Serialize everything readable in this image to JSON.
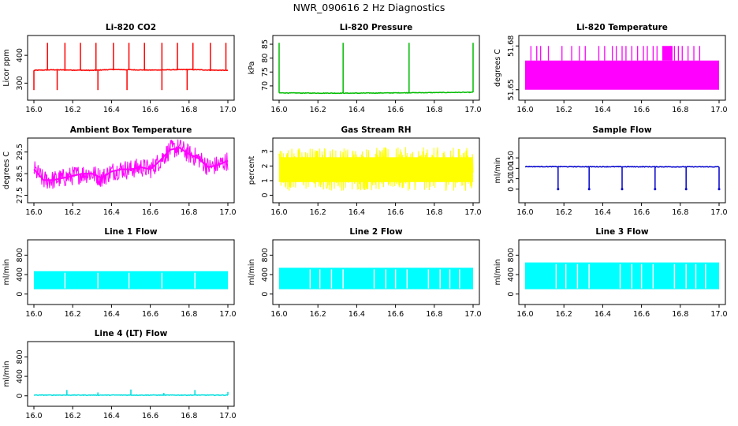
{
  "figure_title": "NWR_090616  2 Hz Diagnostics",
  "chart_data": [
    {
      "id": "co2",
      "type": "line",
      "title": "Li-820 CO2",
      "ylabel": "Licor ppm",
      "color": "#ff0000",
      "xlim": [
        16.0,
        17.0
      ],
      "ylim": [
        250,
        460
      ],
      "yticks": [
        "300",
        "400"
      ],
      "ytick_values": [
        300,
        400
      ],
      "xticks": [
        "16.0",
        "16.2",
        "16.4",
        "16.6",
        "16.8",
        "17.0"
      ],
      "x": [
        16.0,
        16.1,
        16.2,
        16.3,
        16.4,
        16.5,
        16.6,
        16.7,
        16.8,
        16.9,
        17.0
      ],
      "values": [
        346,
        348,
        347,
        346,
        349,
        348,
        347,
        348,
        349,
        347,
        346
      ],
      "spikes_up_x": [
        16.07,
        16.16,
        16.24,
        16.32,
        16.41,
        16.49,
        16.57,
        16.66,
        16.74,
        16.82,
        16.91,
        16.99
      ],
      "spikes_up_to": 445,
      "spikes_down_x": [
        16.0,
        16.12,
        16.33,
        16.48,
        16.66,
        16.79
      ],
      "spikes_down_to": 275
    },
    {
      "id": "pressure",
      "type": "line",
      "title": "Li-820 Pressure",
      "ylabel": "kPa",
      "color": "#00bb00",
      "xlim": [
        16.0,
        17.0
      ],
      "ylim": [
        66,
        87
      ],
      "yticks": [
        "70",
        "75",
        "80",
        "85"
      ],
      "ytick_values": [
        70,
        75,
        80,
        85
      ],
      "xticks": [
        "16.0",
        "16.2",
        "16.4",
        "16.6",
        "16.8",
        "17.0"
      ],
      "x": [
        16.0,
        16.2,
        16.4,
        16.6,
        16.8,
        17.0
      ],
      "values": [
        67.5,
        67.4,
        67.4,
        67.5,
        67.6,
        67.7
      ],
      "spikes_up_x": [
        16.0,
        16.33,
        16.67,
        17.0
      ],
      "spikes_up_to": 85.5
    },
    {
      "id": "temperature",
      "type": "area",
      "title": "Li-820 Temperature",
      "ylabel": "degrees C",
      "color": "#ff00ff",
      "xlim": [
        16.0,
        17.0
      ],
      "ylim": [
        51.645,
        51.685
      ],
      "yticks": [
        "51.65",
        "51.68"
      ],
      "ytick_values": [
        51.65,
        51.68
      ],
      "xticks": [
        "16.0",
        "16.2",
        "16.4",
        "16.6",
        "16.8",
        "17.0"
      ],
      "band": [
        51.65,
        51.67
      ],
      "spike_top": 51.68,
      "spikes_up_x": [
        16.03,
        16.06,
        16.08,
        16.12,
        16.19,
        16.24,
        16.28,
        16.31,
        16.38,
        16.41,
        16.45,
        16.47,
        16.5,
        16.52,
        16.55,
        16.58,
        16.61,
        16.63,
        16.66,
        16.68,
        16.71,
        16.75,
        16.77,
        16.79,
        16.81,
        16.84,
        16.87,
        16.9
      ],
      "solid_range": [
        16.71,
        16.76
      ]
    },
    {
      "id": "ambient",
      "type": "line",
      "title": "Ambient Box Temperature",
      "ylabel": "degrees C",
      "color": "#ff00ff",
      "xlim": [
        16.0,
        17.0
      ],
      "ylim": [
        27.3,
        30.0
      ],
      "yticks": [
        "27.5",
        "28.5",
        "29.5"
      ],
      "ytick_values": [
        27.5,
        28.5,
        29.5
      ],
      "xticks": [
        "16.0",
        "16.2",
        "16.4",
        "16.6",
        "16.8",
        "17.0"
      ],
      "x": [
        16.0,
        16.05,
        16.1,
        16.15,
        16.2,
        16.25,
        16.3,
        16.35,
        16.4,
        16.45,
        16.5,
        16.55,
        16.6,
        16.65,
        16.7,
        16.75,
        16.8,
        16.85,
        16.9,
        16.95,
        17.0
      ],
      "values": [
        28.7,
        28.2,
        28.2,
        28.3,
        28.4,
        28.5,
        28.5,
        28.3,
        28.6,
        28.7,
        28.7,
        28.8,
        28.7,
        29.1,
        29.6,
        29.7,
        29.4,
        29.2,
        28.8,
        28.9,
        29.1
      ],
      "amplitude": 0.45
    },
    {
      "id": "rh",
      "type": "area",
      "title": "Gas Stream RH",
      "ylabel": "percent",
      "color": "#ffff00",
      "xlim": [
        16.0,
        17.0
      ],
      "ylim": [
        -0.3,
        3.7
      ],
      "yticks": [
        "0",
        "1",
        "2",
        "3"
      ],
      "ytick_values": [
        0,
        1,
        2,
        3
      ],
      "xticks": [
        "16.0",
        "16.2",
        "16.4",
        "16.6",
        "16.8",
        "17.0"
      ],
      "band": [
        0.3,
        3.3
      ]
    },
    {
      "id": "sample",
      "type": "line",
      "title": "Sample Flow",
      "ylabel": "ml/min",
      "color": "#0000cc",
      "xlim": [
        16.0,
        17.0
      ],
      "ylim": [
        -50,
        230
      ],
      "yticks": [
        "0",
        "50",
        "100",
        "150"
      ],
      "ytick_values": [
        0,
        50,
        100,
        150
      ],
      "xticks": [
        "16.0",
        "16.2",
        "16.4",
        "16.6",
        "16.8",
        "17.0"
      ],
      "x": [
        16.0,
        17.0
      ],
      "values": [
        108,
        107
      ],
      "spikes_down_x": [
        16.17,
        16.33,
        16.5,
        16.67,
        16.83,
        17.0
      ],
      "spikes_down_to": 0
    },
    {
      "id": "line1",
      "type": "area",
      "title": "Line 1 Flow",
      "ylabel": "ml/min",
      "color": "#00ffff",
      "xlim": [
        16.0,
        17.0
      ],
      "ylim": [
        -150,
        1050
      ],
      "yticks": [
        "0",
        "400",
        "800"
      ],
      "ytick_values": [
        0,
        400,
        800
      ],
      "xticks": [
        "16.0",
        "16.2",
        "16.4",
        "16.6",
        "16.8",
        "17.0"
      ],
      "band": [
        100,
        470
      ],
      "gaps_x": [
        16.16,
        16.33,
        16.49,
        16.66,
        16.83
      ]
    },
    {
      "id": "line2",
      "type": "area",
      "title": "Line 2 Flow",
      "ylabel": "ml/min",
      "color": "#00ffff",
      "xlim": [
        16.0,
        17.0
      ],
      "ylim": [
        -150,
        1050
      ],
      "yticks": [
        "0",
        "400",
        "800"
      ],
      "ytick_values": [
        0,
        400,
        800
      ],
      "xticks": [
        "16.0",
        "16.2",
        "16.4",
        "16.6",
        "16.8",
        "17.0"
      ],
      "band": [
        100,
        540
      ],
      "gaps_x": [
        16.16,
        16.21,
        16.27,
        16.33,
        16.49,
        16.55,
        16.6,
        16.66,
        16.77,
        16.83,
        16.88,
        16.93
      ]
    },
    {
      "id": "line3",
      "type": "area",
      "title": "Line 3 Flow",
      "ylabel": "ml/min",
      "color": "#00ffff",
      "xlim": [
        16.0,
        17.0
      ],
      "ylim": [
        -150,
        1050
      ],
      "yticks": [
        "0",
        "400",
        "800"
      ],
      "ytick_values": [
        0,
        400,
        800
      ],
      "xticks": [
        "16.0",
        "16.2",
        "16.4",
        "16.6",
        "16.8",
        "17.0"
      ],
      "band": [
        100,
        650
      ],
      "gaps_x": [
        16.16,
        16.21,
        16.27,
        16.33,
        16.49,
        16.55,
        16.6,
        16.66,
        16.77,
        16.83,
        16.88,
        16.93
      ]
    },
    {
      "id": "line4",
      "type": "line",
      "title": "Line 4 (LT) Flow",
      "ylabel": "ml/min",
      "color": "#00dddd",
      "xlim": [
        16.0,
        17.0
      ],
      "ylim": [
        -150,
        1050
      ],
      "yticks": [
        "0",
        "400",
        "800"
      ],
      "ytick_values": [
        0,
        400,
        800
      ],
      "xticks": [
        "16.0",
        "16.2",
        "16.4",
        "16.6",
        "16.8",
        "17.0"
      ],
      "x": [
        16.0,
        17.0
      ],
      "values": [
        15,
        15
      ],
      "spikes_up_x": [
        16.17,
        16.33,
        16.5,
        16.67,
        16.83,
        17.0
      ],
      "spikes_heights": [
        120,
        70,
        130,
        60,
        120,
        80
      ]
    }
  ]
}
